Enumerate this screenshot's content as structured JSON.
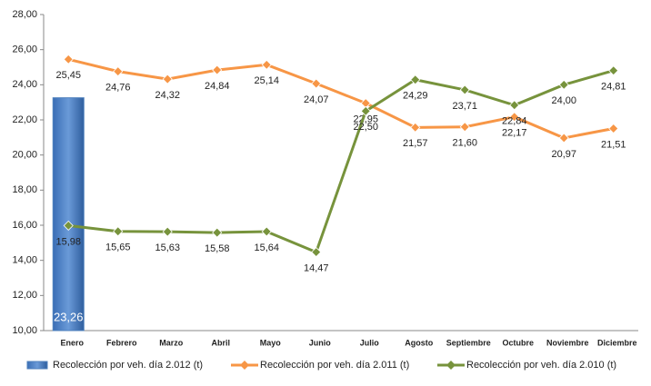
{
  "chart_data": {
    "type": "combo",
    "categories": [
      "Enero",
      "Febrero",
      "Marzo",
      "Abril",
      "Mayo",
      "Junio",
      "Julio",
      "Agosto",
      "Septiembre",
      "Octubre",
      "Noviembre",
      "Diciembre"
    ],
    "ylim": [
      10,
      28
    ],
    "yticks": [
      {
        "value": 10,
        "label": "10,00"
      },
      {
        "value": 12,
        "label": "12,00"
      },
      {
        "value": 14,
        "label": "14,00"
      },
      {
        "value": 16,
        "label": "16,00"
      },
      {
        "value": 18,
        "label": "18,00"
      },
      {
        "value": 20,
        "label": "20,00"
      },
      {
        "value": 22,
        "label": "22,00"
      },
      {
        "value": 24,
        "label": "24,00"
      },
      {
        "value": 26,
        "label": "26,00"
      },
      {
        "value": 28,
        "label": "28,00"
      }
    ],
    "legend": "bottom",
    "series": [
      {
        "name": "Recolección por veh. día 2.012 (t)",
        "type": "bar",
        "color": "#4f81bd",
        "values": [
          23.26,
          null,
          null,
          null,
          null,
          null,
          null,
          null,
          null,
          null,
          null,
          null
        ],
        "value_labels": [
          "23,26",
          null,
          null,
          null,
          null,
          null,
          null,
          null,
          null,
          null,
          null,
          null
        ]
      },
      {
        "name": "Recolección por veh. día 2.011 (t)",
        "type": "line",
        "color": "#f79646",
        "values": [
          25.45,
          24.76,
          24.32,
          24.84,
          25.14,
          24.07,
          22.95,
          21.57,
          21.6,
          22.17,
          20.97,
          21.51
        ],
        "value_labels": [
          "25,45",
          "24,76",
          "24,32",
          "24,84",
          "25,14",
          "24,07",
          "22,95",
          "21,57",
          "21,60",
          "22,17",
          "20,97",
          "21,51"
        ]
      },
      {
        "name": "Recolección por veh. día 2.010 (t)",
        "type": "line",
        "color": "#77933c",
        "values": [
          15.98,
          15.65,
          15.63,
          15.58,
          15.64,
          14.47,
          22.5,
          24.29,
          23.71,
          22.84,
          24.0,
          24.81
        ],
        "value_labels": [
          "15,98",
          "15,65",
          "15,63",
          "15,58",
          "15,64",
          "14,47",
          "22,50",
          "24,29",
          "23,71",
          "22,84",
          "24,00",
          "24,81"
        ]
      }
    ]
  }
}
